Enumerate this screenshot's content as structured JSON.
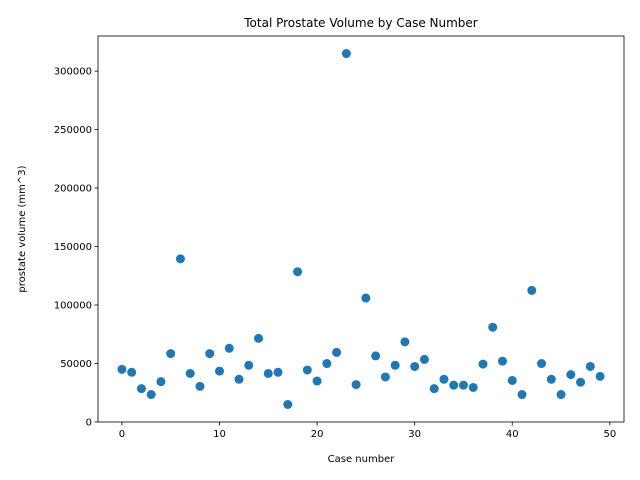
{
  "chart_data": {
    "type": "scatter",
    "title": "Total Prostate Volume by Case Number",
    "xlabel": "Case number",
    "ylabel": "prostate volume (mm^3)",
    "xlim": [
      -2.45,
      51.45
    ],
    "ylim": [
      0,
      330000
    ],
    "xticks": [
      0,
      10,
      20,
      30,
      40,
      50
    ],
    "yticks": [
      0,
      50000,
      100000,
      150000,
      200000,
      250000,
      300000
    ],
    "grid": false,
    "color": "#1f77b4",
    "x": [
      0,
      1,
      2,
      3,
      4,
      5,
      6,
      7,
      8,
      9,
      10,
      11,
      12,
      13,
      14,
      15,
      16,
      17,
      18,
      19,
      20,
      21,
      22,
      23,
      24,
      25,
      26,
      27,
      28,
      29,
      30,
      31,
      32,
      33,
      34,
      35,
      36,
      37,
      38,
      39,
      40,
      41,
      42,
      43,
      44,
      45,
      46,
      47,
      48,
      49
    ],
    "y": [
      45000,
      42500,
      28500,
      23500,
      34500,
      58500,
      139500,
      41500,
      30500,
      58500,
      43500,
      63000,
      36500,
      48500,
      71500,
      41500,
      42500,
      15000,
      128500,
      44500,
      35000,
      50000,
      59500,
      315000,
      32000,
      106000,
      56500,
      38500,
      48500,
      68500,
      47500,
      53500,
      28500,
      36500,
      31500,
      31500,
      29500,
      49500,
      81000,
      52000,
      35500,
      23500,
      112500,
      50000,
      36500,
      23500,
      40500,
      34000,
      47500,
      39000
    ]
  }
}
